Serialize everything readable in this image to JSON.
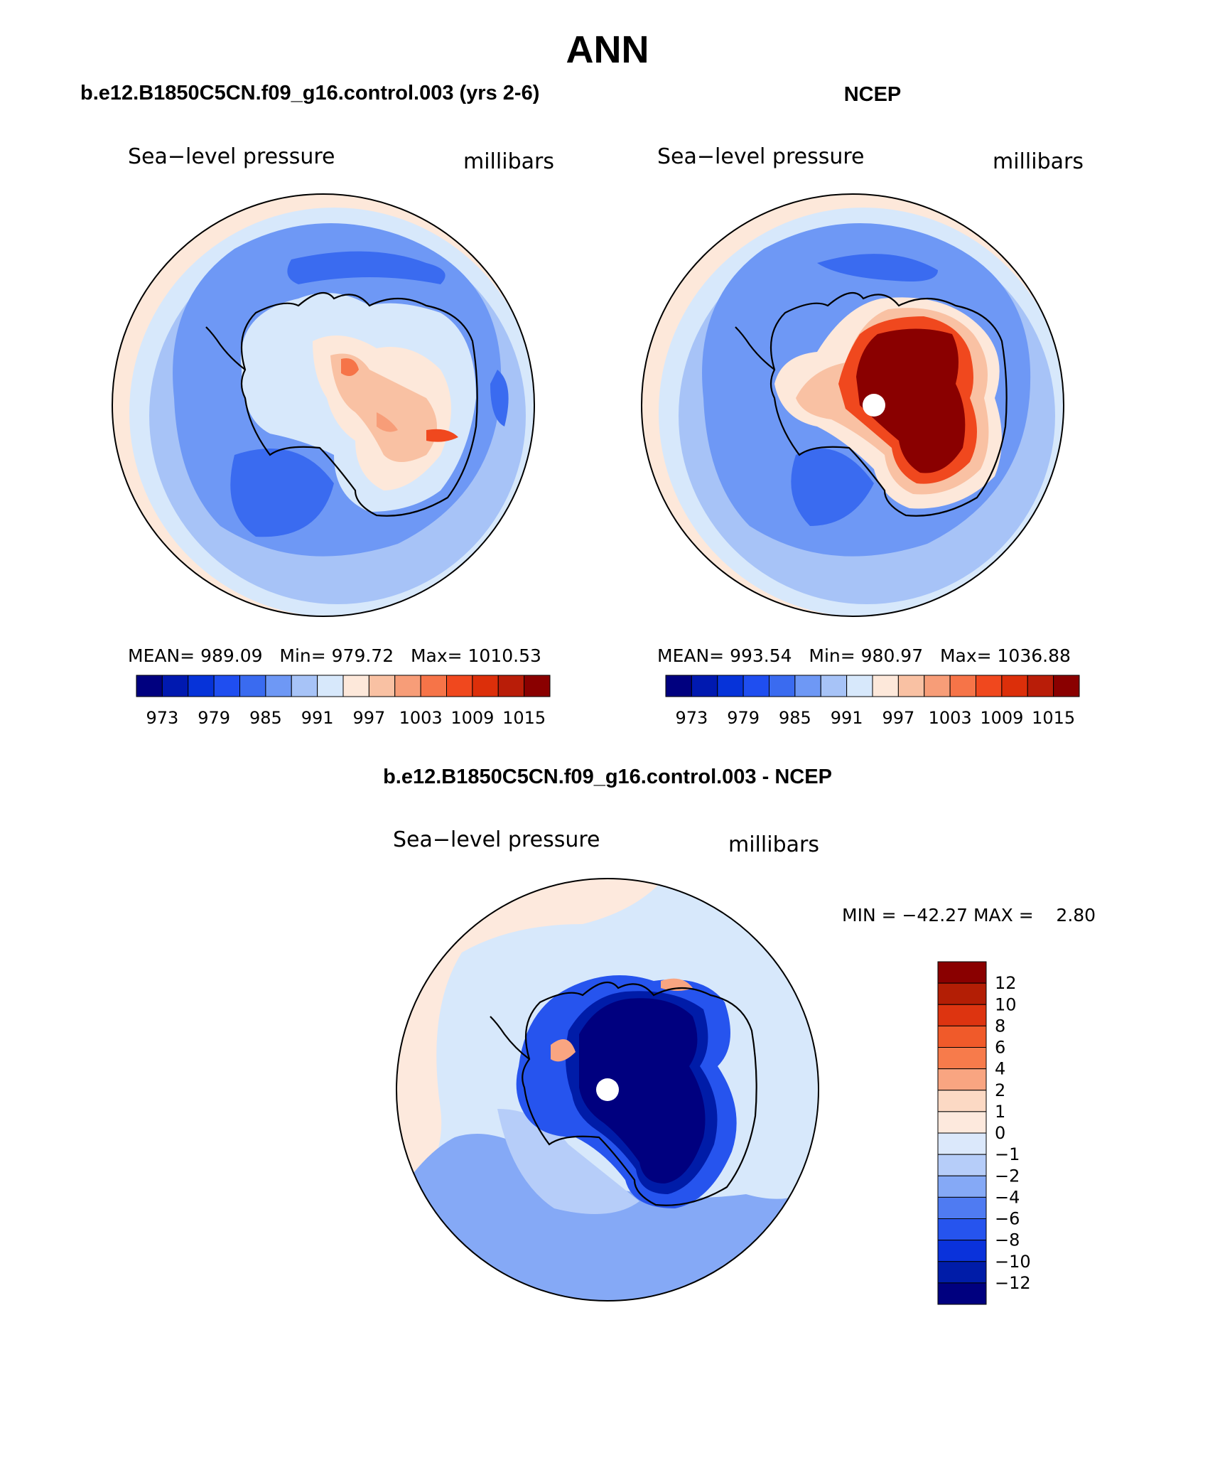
{
  "title": "ANN",
  "panels": [
    {
      "header": "b.e12.B1850C5CN.f09_g16.control.003 (yrs 2-6)",
      "left_label": "Sea−level pressure",
      "right_label": "millibars",
      "stats": "MEAN= 989.09   Min= 979.72   Max= 1010.53",
      "colorbar_ticks": [
        "973",
        "979",
        "985",
        "991",
        "997",
        "1003",
        "1009",
        "1015"
      ]
    },
    {
      "header": "NCEP",
      "left_label": "Sea−level pressure",
      "right_label": "millibars",
      "stats": "MEAN= 993.54   Min= 980.97   Max= 1036.88",
      "colorbar_ticks": [
        "973",
        "979",
        "985",
        "991",
        "997",
        "1003",
        "1009",
        "1015"
      ]
    }
  ],
  "diff_panel": {
    "header": "b.e12.B1850C5CN.f09_g16.control.003 - NCEP",
    "left_label": "Sea−level pressure",
    "right_label": "millibars",
    "stats": "MIN = −42.27 MAX =    2.80",
    "colorbar_ticks": [
      "12",
      "10",
      "8",
      "6",
      "4",
      "2",
      "1",
      "0",
      "−1",
      "−2",
      "−4",
      "−6",
      "−8",
      "−10",
      "−12"
    ]
  },
  "colors": {
    "main_scale": [
      "#00007f",
      "#0019b0",
      "#0633d9",
      "#1f4ef0",
      "#3a6bf0",
      "#6e98f5",
      "#a7c3f7",
      "#d7e8fb",
      "#fde8da",
      "#f9c1a3",
      "#f79d78",
      "#f67448",
      "#f0481e",
      "#dc2f0a",
      "#b91d08",
      "#8a0000"
    ],
    "diff_scale": [
      "#8a0000",
      "#b31e05",
      "#dd3410",
      "#f05a2a",
      "#f77b4b",
      "#f9a581",
      "#fcd9c4",
      "#fde9dd",
      "#dbe8fb",
      "#b6cdf9",
      "#85a9f6",
      "#4f7bf2",
      "#2654ee",
      "#0a32db",
      "#001ca8",
      "#00007f"
    ]
  }
}
